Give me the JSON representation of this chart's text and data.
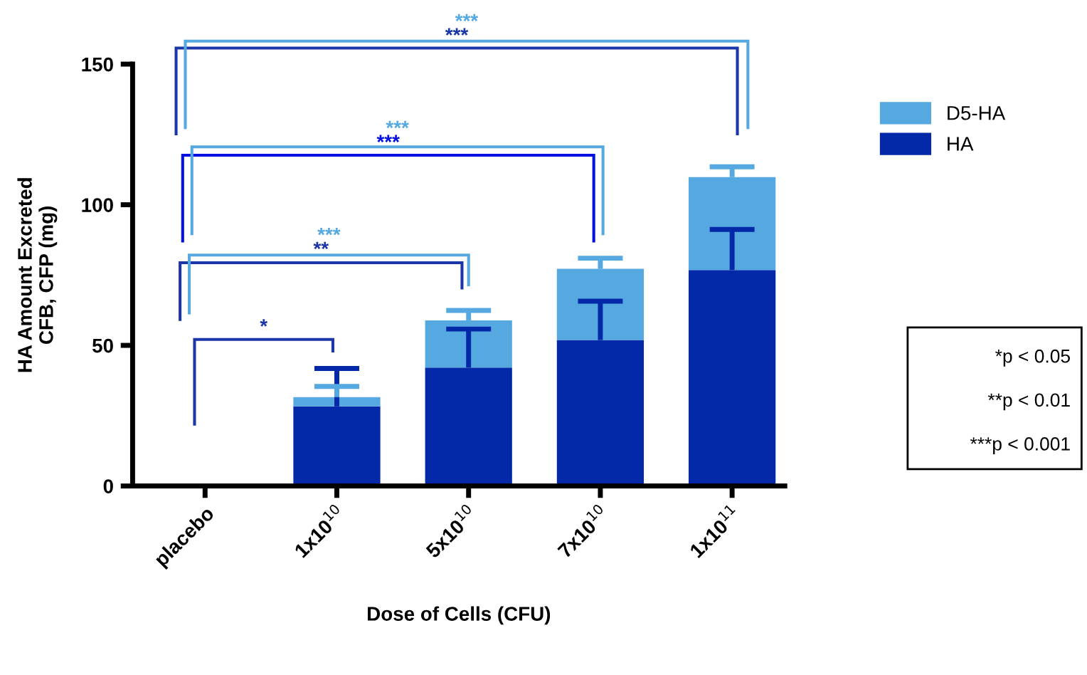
{
  "chart_data": {
    "type": "bar",
    "stacked": true,
    "categories": [
      "placebo",
      "1x10$^{10}$",
      "5x10$^{10}$",
      "7x10$^{10}$",
      "1x10$^{11}$"
    ],
    "xlabel": "Dose of Cells (CFU)",
    "ylabel": "HA Amount Excreted\nCFB, CFP (mg)",
    "series": [
      {
        "name": "HA",
        "color": "#0328a8",
        "values": [
          null,
          28.3,
          42.1,
          51.9,
          76.8
        ],
        "errors": [
          null,
          [
            28.3,
            41.8
          ],
          [
            42.1,
            55.8
          ],
          [
            51.9,
            65.7
          ],
          [
            76.8,
            91.2
          ]
        ]
      },
      {
        "name": "D5-HA",
        "color": "#56a9e0",
        "values": [
          null,
          3.3,
          16.8,
          25.3,
          33.0
        ],
        "errors": [
          null,
          [
            31.6,
            35.4
          ],
          [
            58.9,
            62.4
          ],
          [
            77.2,
            81.0
          ],
          [
            109.8,
            113.5
          ]
        ]
      }
    ],
    "ylim": [
      0,
      150
    ],
    "yticks": [
      0,
      50,
      100,
      150
    ],
    "grid": false,
    "legend": "top right",
    "annotations": [
      "*",
      "**",
      "***",
      "***",
      "***",
      "***",
      "***",
      "*p < 0.05",
      "**p < 0.01",
      "***p < 0.001"
    ]
  }
}
